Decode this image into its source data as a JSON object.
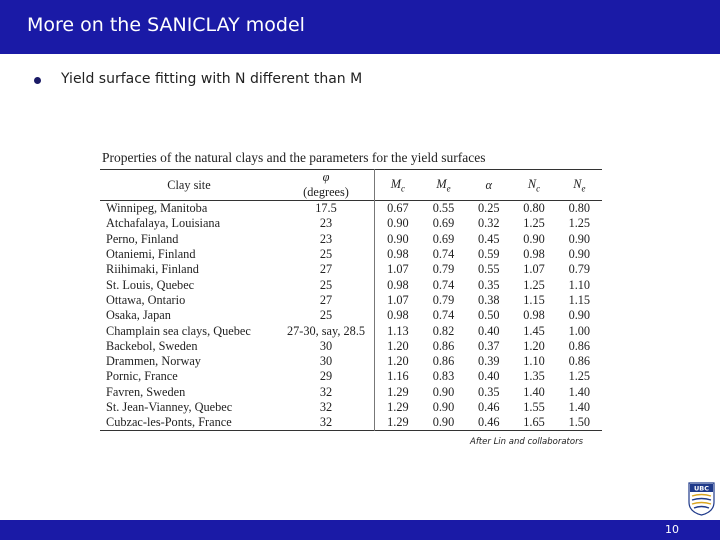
{
  "slide": {
    "title": "More on the SANICLAY model",
    "bullet": "Yield surface fitting with N different than M",
    "credit": "After Lin and collaborators",
    "page_number": "10",
    "logo_text": "UBC"
  },
  "table": {
    "caption": "Properties of the natural clays and the parameters for the yield surfaces",
    "headers": {
      "site": "Clay site",
      "phi_symbol": "φ",
      "phi_unit": "(degrees)",
      "mc": "M",
      "mc_sub": "c",
      "me": "M",
      "me_sub": "e",
      "alpha": "α",
      "nc": "N",
      "nc_sub": "c",
      "ne": "N",
      "ne_sub": "e"
    },
    "rows": [
      {
        "site": "Winnipeg, Manitoba",
        "phi": "17.5",
        "mc": "0.67",
        "me": "0.55",
        "alpha": "0.25",
        "nc": "0.80",
        "ne": "0.80"
      },
      {
        "site": "Atchafalaya, Louisiana",
        "phi": "23",
        "mc": "0.90",
        "me": "0.69",
        "alpha": "0.32",
        "nc": "1.25",
        "ne": "1.25"
      },
      {
        "site": "Perno, Finland",
        "phi": "23",
        "mc": "0.90",
        "me": "0.69",
        "alpha": "0.45",
        "nc": "0.90",
        "ne": "0.90"
      },
      {
        "site": "Otaniemi, Finland",
        "phi": "25",
        "mc": "0.98",
        "me": "0.74",
        "alpha": "0.59",
        "nc": "0.98",
        "ne": "0.90"
      },
      {
        "site": "Riihimaki, Finland",
        "phi": "27",
        "mc": "1.07",
        "me": "0.79",
        "alpha": "0.55",
        "nc": "1.07",
        "ne": "0.79"
      },
      {
        "site": "St. Louis, Quebec",
        "phi": "25",
        "mc": "0.98",
        "me": "0.74",
        "alpha": "0.35",
        "nc": "1.25",
        "ne": "1.10"
      },
      {
        "site": "Ottawa, Ontario",
        "phi": "27",
        "mc": "1.07",
        "me": "0.79",
        "alpha": "0.38",
        "nc": "1.15",
        "ne": "1.15"
      },
      {
        "site": "Osaka, Japan",
        "phi": "25",
        "mc": "0.98",
        "me": "0.74",
        "alpha": "0.50",
        "nc": "0.98",
        "ne": "0.90"
      },
      {
        "site": "Champlain sea clays, Quebec",
        "phi": "27-30, say, 28.5",
        "mc": "1.13",
        "me": "0.82",
        "alpha": "0.40",
        "nc": "1.45",
        "ne": "1.00"
      },
      {
        "site": "Backebol, Sweden",
        "phi": "30",
        "mc": "1.20",
        "me": "0.86",
        "alpha": "0.37",
        "nc": "1.20",
        "ne": "0.86"
      },
      {
        "site": "Drammen, Norway",
        "phi": "30",
        "mc": "1.20",
        "me": "0.86",
        "alpha": "0.39",
        "nc": "1.10",
        "ne": "0.86"
      },
      {
        "site": "Pornic, France",
        "phi": "29",
        "mc": "1.16",
        "me": "0.83",
        "alpha": "0.40",
        "nc": "1.35",
        "ne": "1.25"
      },
      {
        "site": "Favren, Sweden",
        "phi": "32",
        "mc": "1.29",
        "me": "0.90",
        "alpha": "0.35",
        "nc": "1.40",
        "ne": "1.40"
      },
      {
        "site": "St. Jean-Vianney, Quebec",
        "phi": "32",
        "mc": "1.29",
        "me": "0.90",
        "alpha": "0.46",
        "nc": "1.55",
        "ne": "1.40"
      },
      {
        "site": "Cubzac-les-Ponts, France",
        "phi": "32",
        "mc": "1.29",
        "me": "0.90",
        "alpha": "0.46",
        "nc": "1.65",
        "ne": "1.50"
      }
    ]
  },
  "colors": {
    "header_bar": "#1a1aa6",
    "bullet": "#1a1a66",
    "logo_blue": "#1f3a8a",
    "logo_gold": "#d9a521"
  }
}
